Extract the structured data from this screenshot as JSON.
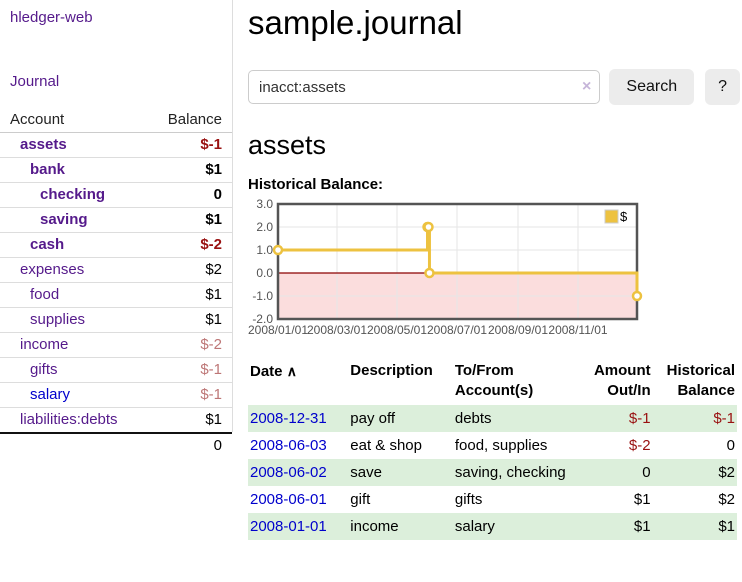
{
  "app": {
    "title": "hledger-web",
    "nav_journal": "Journal"
  },
  "sidebar": {
    "header": {
      "account": "Account",
      "balance": "Balance"
    },
    "accounts": [
      {
        "name": "assets",
        "depth": 1,
        "bold": true,
        "balance": "$-1",
        "balance_style": "neg-strong",
        "link_color": "purple"
      },
      {
        "name": "bank",
        "depth": 2,
        "bold": true,
        "balance": "$1",
        "balance_style": "pos",
        "link_color": "purple"
      },
      {
        "name": "checking",
        "depth": 3,
        "bold": true,
        "balance": "0",
        "balance_style": "pos",
        "link_color": "purple"
      },
      {
        "name": "saving",
        "depth": 3,
        "bold": true,
        "balance": "$1",
        "balance_style": "pos",
        "link_color": "purple"
      },
      {
        "name": "cash",
        "depth": 2,
        "bold": true,
        "balance": "$-2",
        "balance_style": "neg-strong",
        "link_color": "purple"
      },
      {
        "name": "expenses",
        "depth": 1,
        "bold": false,
        "balance": "$2",
        "balance_style": "pos",
        "link_color": "purple"
      },
      {
        "name": "food",
        "depth": 2,
        "bold": false,
        "balance": "$1",
        "balance_style": "pos",
        "link_color": "purple"
      },
      {
        "name": "supplies",
        "depth": 2,
        "bold": false,
        "balance": "$1",
        "balance_style": "pos",
        "link_color": "purple"
      },
      {
        "name": "income",
        "depth": 1,
        "bold": false,
        "balance": "$-2",
        "balance_style": "neg-muted",
        "link_color": "purple"
      },
      {
        "name": "gifts",
        "depth": 2,
        "bold": false,
        "balance": "$-1",
        "balance_style": "neg-muted",
        "link_color": "purple"
      },
      {
        "name": "salary",
        "depth": 2,
        "bold": false,
        "balance": "$-1",
        "balance_style": "neg-muted",
        "link_color": "blue"
      },
      {
        "name": "liabilities:debts",
        "depth": 1,
        "bold": false,
        "balance": "$1",
        "balance_style": "pos",
        "link_color": "purple"
      }
    ],
    "total": "0"
  },
  "main": {
    "title": "sample.journal",
    "search": {
      "value": "inacct:assets",
      "clear_icon": "×",
      "button": "Search",
      "help_button": "?"
    },
    "account_heading": "assets",
    "chart_label": "Historical Balance:"
  },
  "chart_data": {
    "type": "line",
    "title": "Historical Balance:",
    "step": true,
    "series": [
      {
        "name": "$",
        "color": "#edc240",
        "points": [
          {
            "date": "2008-01-01",
            "value": 1
          },
          {
            "date": "2008-06-01",
            "value": 2
          },
          {
            "date": "2008-06-02",
            "value": 2
          },
          {
            "date": "2008-06-03",
            "value": 0
          },
          {
            "date": "2008-12-31",
            "value": -1
          }
        ]
      }
    ],
    "xrange": [
      "2008-01-01",
      "2008-12-31"
    ],
    "ylim": [
      -2.0,
      3.0
    ],
    "yticks": [
      3.0,
      2.0,
      1.0,
      0.0,
      -1.0,
      -2.0
    ],
    "xticks": [
      {
        "date": "2008-01-01",
        "label": "2008/01/01"
      },
      {
        "date": "2008-03-01",
        "label": "2008/03/01"
      },
      {
        "date": "2008-05-01",
        "label": "2008/05/01"
      },
      {
        "date": "2008-07-01",
        "label": "2008/07/01"
      },
      {
        "date": "2008-09-01",
        "label": "2008/09/01"
      },
      {
        "date": "2008-11-01",
        "label": "2008/11/01"
      }
    ],
    "legend": {
      "label": "$",
      "position": "top-right"
    },
    "grid": true,
    "negative_region_fill": "#fbdddd",
    "zero_line_color": "#8b0000",
    "border_color": "#545454",
    "tick_color": "#545454"
  },
  "transactions": {
    "headers": [
      {
        "label": "Date",
        "sorted_asc": true
      },
      {
        "label": "Description"
      },
      {
        "label": "To/From Account(s)"
      },
      {
        "label": "Amount Out/In",
        "align": "right"
      },
      {
        "label": "Historical Balance",
        "align": "right"
      }
    ],
    "sort_indicator": "∧",
    "rows": [
      {
        "date": "2008-12-31",
        "description": "pay off",
        "accounts": "debts",
        "amount": "$-1",
        "amount_neg": true,
        "balance": "$-1",
        "balance_neg": true
      },
      {
        "date": "2008-06-03",
        "description": "eat & shop",
        "accounts": "food, supplies",
        "amount": "$-2",
        "amount_neg": true,
        "balance": "0",
        "balance_neg": false
      },
      {
        "date": "2008-06-02",
        "description": "save",
        "accounts": "saving, checking",
        "amount": "0",
        "amount_neg": false,
        "balance": "$2",
        "balance_neg": false
      },
      {
        "date": "2008-06-01",
        "description": "gift",
        "accounts": "gifts",
        "amount": "$1",
        "amount_neg": false,
        "balance": "$2",
        "balance_neg": false
      },
      {
        "date": "2008-01-01",
        "description": "income",
        "accounts": "salary",
        "amount": "$1",
        "amount_neg": false,
        "balance": "$1",
        "balance_neg": false
      }
    ]
  }
}
